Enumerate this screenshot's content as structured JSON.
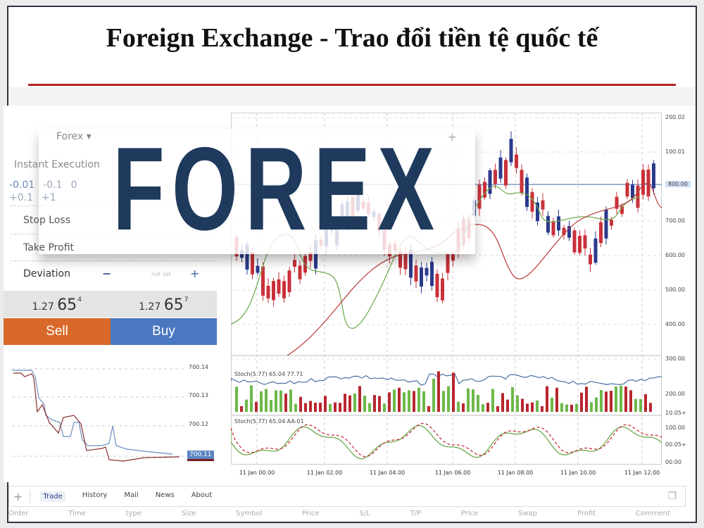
{
  "title": "Foreign Exchange - Trao đổi tiền tệ quốc tế",
  "overlay": {
    "logo_text": "FOREX",
    "symbol": "Forex",
    "execution": "Instant Execution"
  },
  "order_panel": {
    "volume_steps": [
      "-0.01",
      "-0.1",
      "0",
      "+0.1",
      "+1"
    ],
    "stop_loss": "Stop Loss",
    "take_profit": "Take Profit",
    "deviation": "Deviation",
    "minus": "−",
    "plus": "+",
    "deviation_value": "not set",
    "bid": {
      "prefix": "1.27",
      "big": "65",
      "sup": "4"
    },
    "ask": {
      "prefix": "1.27",
      "big": "65",
      "sup": "7"
    },
    "sell_label": "Sell",
    "buy_label": "Buy",
    "mini_chart_levels": [
      "700.14",
      "700.13",
      "700.12"
    ],
    "mini_chart_current": "700.11"
  },
  "chart": {
    "price_levels": [
      "200.02",
      "100.01",
      "800.00",
      "700.00",
      "600.00",
      "500.00",
      "400.00",
      "300.00"
    ],
    "current_price": "800.00",
    "stoch1_label": "Stoch(5.77) 65.04 77.71",
    "stoch1_levels": [
      "200.00",
      "10.05+"
    ],
    "stoch2_label": "Stoch(5.77) 65.04 AA-01",
    "stoch2_levels": [
      "100.00",
      "00.05+",
      "00.00"
    ],
    "time_labels": [
      "11 Jan 00.00",
      "11 Jan 02.00",
      "11 Jan 04.00",
      "11 Jan 06.00",
      "11 Jan 08.00",
      "11 Jan 10.00",
      "11 Jan 12.00"
    ],
    "colors": {
      "bull": "#2b3a8c",
      "bear": "#c9313a",
      "ma_green": "#6aaa4a",
      "ma_red": "#b83b3b",
      "stoch_blue": "#4a6fa0"
    }
  },
  "bottom": {
    "tabs": [
      "Trade",
      "History",
      "Mail",
      "News",
      "About"
    ],
    "columns": [
      "Order",
      "Time",
      "type",
      "Size",
      "Symbol",
      "Price",
      "S/L",
      "T/P",
      "Price",
      "Swap",
      "Profit",
      "Comment"
    ]
  }
}
